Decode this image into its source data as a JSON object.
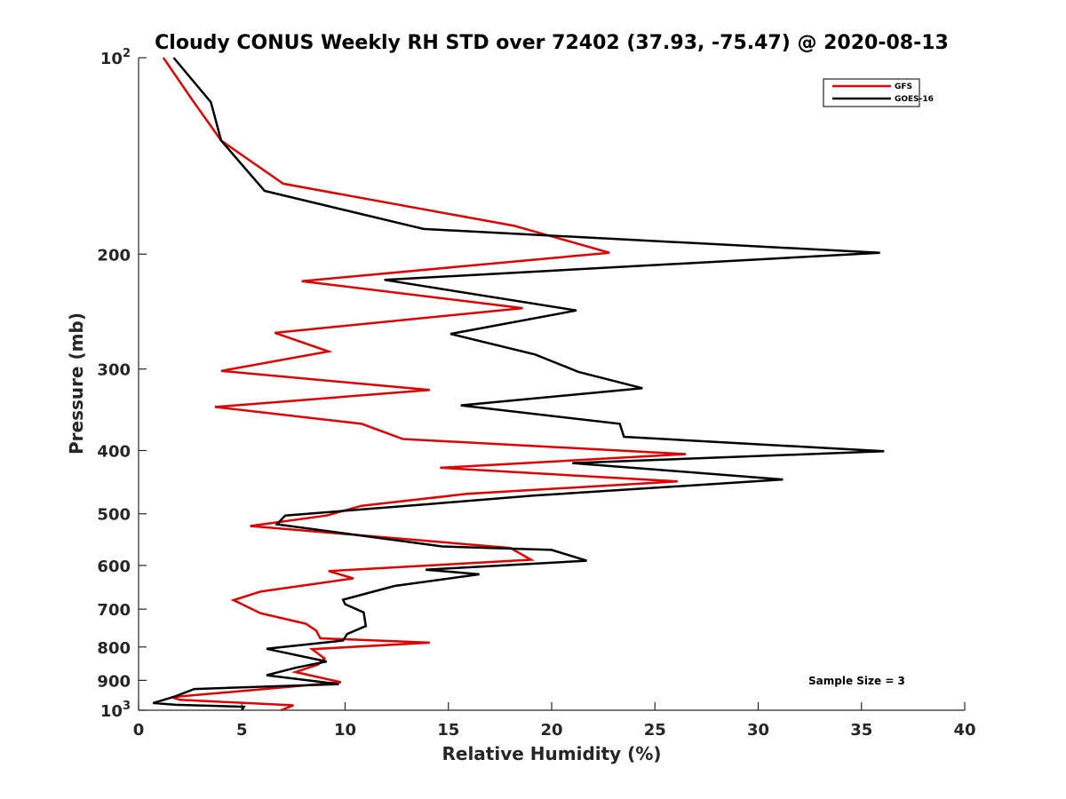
{
  "chart_data": {
    "type": "line",
    "title": "Cloudy CONUS Weekly RH STD over 72402 (37.93, -75.47) @ 2020-08-13",
    "xlabel": "Relative Humidity (%)",
    "ylabel": "Pressure (mb)",
    "xlim": [
      0,
      40
    ],
    "ylim": [
      100,
      1000
    ],
    "y_scale": "log",
    "y_reversed": true,
    "grid": false,
    "legend_position": "top-right",
    "annotation": "Sample Size = 3",
    "x_ticks": [
      "0",
      "5",
      "10",
      "15",
      "20",
      "25",
      "30",
      "35",
      "40"
    ],
    "y_ticks": [
      {
        "value": 100,
        "base": "10",
        "sup": "2"
      },
      {
        "value": 200,
        "base": "200",
        "sup": ""
      },
      {
        "value": 300,
        "base": "300",
        "sup": ""
      },
      {
        "value": 400,
        "base": "400",
        "sup": ""
      },
      {
        "value": 500,
        "base": "500",
        "sup": ""
      },
      {
        "value": 600,
        "base": "600",
        "sup": ""
      },
      {
        "value": 700,
        "base": "700",
        "sup": ""
      },
      {
        "value": 800,
        "base": "800",
        "sup": ""
      },
      {
        "value": 900,
        "base": "900",
        "sup": ""
      },
      {
        "value": 1000,
        "base": "10",
        "sup": "3"
      }
    ],
    "series": [
      {
        "name": "GFS",
        "color": "#e00000",
        "points": [
          [
            1.2,
            100
          ],
          [
            2.6,
            116
          ],
          [
            4.0,
            134
          ],
          [
            7.0,
            156
          ],
          [
            18.2,
            181
          ],
          [
            22.8,
            199
          ],
          [
            7.9,
            220
          ],
          [
            18.6,
            242
          ],
          [
            6.6,
            264
          ],
          [
            9.2,
            282
          ],
          [
            4.0,
            302
          ],
          [
            14.1,
            323
          ],
          [
            3.7,
            343
          ],
          [
            10.8,
            364
          ],
          [
            12.8,
            384
          ],
          [
            26.5,
            405
          ],
          [
            14.6,
            425
          ],
          [
            26.1,
            446
          ],
          [
            15.9,
            466
          ],
          [
            10.8,
            486
          ],
          [
            9.1,
            503
          ],
          [
            5.4,
            522
          ],
          [
            18.0,
            564
          ],
          [
            19.0,
            588
          ],
          [
            9.2,
            612
          ],
          [
            10.4,
            628
          ],
          [
            5.9,
            658
          ],
          [
            4.6,
            678
          ],
          [
            5.9,
            710
          ],
          [
            8.1,
            737
          ],
          [
            8.6,
            755
          ],
          [
            8.8,
            776
          ],
          [
            14.1,
            788
          ],
          [
            8.4,
            806
          ],
          [
            9.0,
            833
          ],
          [
            8.7,
            851
          ],
          [
            7.6,
            874
          ],
          [
            9.8,
            906
          ],
          [
            1.6,
            955
          ],
          [
            2.0,
            964
          ],
          [
            7.5,
            983
          ],
          [
            6.9,
            1000
          ]
        ]
      },
      {
        "name": "GOES-16",
        "color": "#000000",
        "points": [
          [
            1.7,
            100
          ],
          [
            3.5,
            117
          ],
          [
            4.0,
            134
          ],
          [
            6.1,
            160
          ],
          [
            13.8,
            183
          ],
          [
            35.9,
            199
          ],
          [
            11.9,
            219
          ],
          [
            21.2,
            244
          ],
          [
            15.1,
            265
          ],
          [
            19.2,
            285
          ],
          [
            21.3,
            303
          ],
          [
            24.4,
            321
          ],
          [
            15.6,
            341
          ],
          [
            23.3,
            364
          ],
          [
            23.5,
            381
          ],
          [
            36.1,
            401
          ],
          [
            21.0,
            418
          ],
          [
            31.2,
            443
          ],
          [
            19.1,
            469
          ],
          [
            14.1,
            483
          ],
          [
            7.1,
            503
          ],
          [
            6.7,
            519
          ],
          [
            14.7,
            561
          ],
          [
            20.0,
            568
          ],
          [
            21.7,
            590
          ],
          [
            13.9,
            609
          ],
          [
            16.5,
            619
          ],
          [
            12.4,
            645
          ],
          [
            9.9,
            677
          ],
          [
            10.0,
            688
          ],
          [
            10.9,
            708
          ],
          [
            11.0,
            743
          ],
          [
            10.1,
            764
          ],
          [
            9.9,
            782
          ],
          [
            6.2,
            805
          ],
          [
            9.1,
            842
          ],
          [
            7.6,
            861
          ],
          [
            6.2,
            884
          ],
          [
            9.7,
            912
          ],
          [
            2.7,
            928
          ],
          [
            1.7,
            954
          ],
          [
            0.7,
            975
          ],
          [
            1.8,
            981
          ],
          [
            5.1,
            988
          ],
          [
            5.0,
            1000
          ]
        ]
      }
    ]
  }
}
